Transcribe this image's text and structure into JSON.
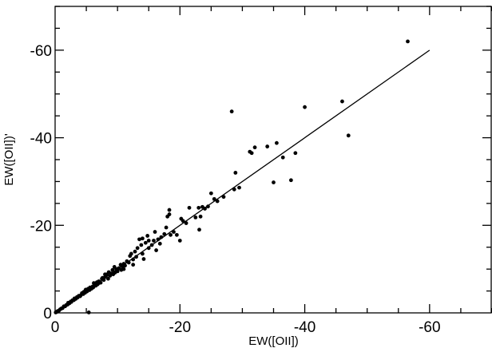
{
  "chart_data": {
    "type": "scatter",
    "title": "",
    "xlabel": "EW([OII])",
    "ylabel": "EW([OII])'",
    "xlim": [
      0,
      -70
    ],
    "ylim": [
      0,
      -70
    ],
    "xticks": [
      0,
      -20,
      -40,
      -60
    ],
    "yticks": [
      0,
      -20,
      -40,
      -60
    ],
    "tick_labels_x": [
      "0",
      "-20",
      "-40",
      "-60"
    ],
    "tick_labels_y": [
      "0",
      "-20",
      "-40",
      "-60"
    ],
    "grid": false,
    "line": {
      "name": "",
      "x": [
        0,
        -60
      ],
      "y": [
        0,
        -60
      ]
    },
    "series": [
      {
        "name": "",
        "points": [
          [
            -56.5,
            -62.0
          ],
          [
            -46.0,
            -48.3
          ],
          [
            -47.0,
            -40.5
          ],
          [
            -40.0,
            -47.0
          ],
          [
            -38.5,
            -36.5
          ],
          [
            -37.8,
            -30.3
          ],
          [
            -36.5,
            -35.5
          ],
          [
            -35.5,
            -38.8
          ],
          [
            -35.0,
            -29.8
          ],
          [
            -34.0,
            -38.0
          ],
          [
            -32.0,
            -37.8
          ],
          [
            -31.5,
            -36.5
          ],
          [
            -31.2,
            -36.8
          ],
          [
            -29.5,
            -28.6
          ],
          [
            -28.9,
            -32.0
          ],
          [
            -28.7,
            -28.2
          ],
          [
            -28.3,
            -46.0
          ],
          [
            -27.0,
            -26.5
          ],
          [
            -26.0,
            -25.5
          ],
          [
            -25.5,
            -26.0
          ],
          [
            -25.0,
            -27.3
          ],
          [
            -24.5,
            -24.3
          ],
          [
            -24.0,
            -23.8
          ],
          [
            -23.6,
            -24.2
          ],
          [
            -23.3,
            -22.0
          ],
          [
            -23.0,
            -24.0
          ],
          [
            -23.1,
            -19.0
          ],
          [
            -22.5,
            -21.8
          ],
          [
            -21.5,
            -24.0
          ],
          [
            -21.0,
            -20.5
          ],
          [
            -20.5,
            -21.0
          ],
          [
            -20.2,
            -21.5
          ],
          [
            -20.0,
            -16.5
          ],
          [
            -19.5,
            -17.8
          ],
          [
            -19.0,
            -18.5
          ],
          [
            -18.5,
            -17.8
          ],
          [
            -18.3,
            -22.5
          ],
          [
            -18.3,
            -23.5
          ],
          [
            -18.0,
            -22.0
          ],
          [
            -17.8,
            -19.5
          ],
          [
            -17.5,
            -18.0
          ],
          [
            -17.0,
            -17.3
          ],
          [
            -16.5,
            -16.8
          ],
          [
            -16.2,
            -14.3
          ],
          [
            -16.0,
            -18.5
          ],
          [
            -15.8,
            -16.5
          ],
          [
            -15.5,
            -15.5
          ],
          [
            -15.0,
            -14.8
          ],
          [
            -14.8,
            -17.6
          ],
          [
            -14.5,
            -16.0
          ],
          [
            -14.2,
            -12.3
          ],
          [
            -14.0,
            -17.0
          ],
          [
            -13.8,
            -15.5
          ],
          [
            -13.5,
            -16.8
          ],
          [
            -13.2,
            -14.8
          ],
          [
            -13.0,
            -12.8
          ],
          [
            -12.8,
            -14.0
          ],
          [
            -12.5,
            -12.2
          ],
          [
            -12.2,
            -13.5
          ],
          [
            -12.0,
            -13.0
          ],
          [
            -11.8,
            -11.5
          ],
          [
            -11.5,
            -11.8
          ],
          [
            -11.2,
            -10.8
          ],
          [
            -11.0,
            -11.2
          ],
          [
            -10.8,
            -10.5
          ],
          [
            -10.6,
            -9.8
          ],
          [
            -10.5,
            -11.0
          ],
          [
            -10.2,
            -10.2
          ],
          [
            -10.0,
            -9.5
          ],
          [
            -9.8,
            -10.0
          ],
          [
            -9.6,
            -9.2
          ],
          [
            -9.5,
            -10.5
          ],
          [
            -9.3,
            -8.8
          ],
          [
            -9.0,
            -9.0
          ],
          [
            -8.8,
            -8.5
          ],
          [
            -8.6,
            -9.3
          ],
          [
            -8.5,
            -7.8
          ],
          [
            -8.3,
            -8.8
          ],
          [
            -8.0,
            -8.2
          ],
          [
            -7.8,
            -7.5
          ],
          [
            -7.6,
            -8.0
          ],
          [
            -7.5,
            -7.8
          ],
          [
            -7.3,
            -6.9
          ],
          [
            -7.0,
            -7.2
          ],
          [
            -6.8,
            -6.5
          ],
          [
            -6.7,
            -7.0
          ],
          [
            -6.5,
            -6.2
          ],
          [
            -6.3,
            -6.6
          ],
          [
            -6.1,
            -5.8
          ],
          [
            -6.0,
            -6.0
          ],
          [
            -5.8,
            -5.5
          ],
          [
            -5.6,
            -5.8
          ],
          [
            -5.5,
            -5.2
          ],
          [
            -5.4,
            -0.1
          ],
          [
            -5.3,
            -5.5
          ],
          [
            -5.1,
            -4.9
          ],
          [
            -5.0,
            -5.1
          ],
          [
            -4.8,
            -4.6
          ],
          [
            -4.6,
            -4.8
          ],
          [
            -4.5,
            -4.3
          ],
          [
            -4.3,
            -4.5
          ],
          [
            -4.1,
            -4.0
          ],
          [
            -4.0,
            -3.8
          ],
          [
            -3.8,
            -3.9
          ],
          [
            -3.6,
            -3.5
          ],
          [
            -3.5,
            -3.6
          ],
          [
            -3.3,
            -3.2
          ],
          [
            -3.1,
            -3.3
          ],
          [
            -3.0,
            -2.9
          ],
          [
            -2.8,
            -2.9
          ],
          [
            -2.6,
            -2.5
          ],
          [
            -2.5,
            -2.6
          ],
          [
            -2.3,
            -2.2
          ],
          [
            -2.1,
            -2.3
          ],
          [
            -2.0,
            -1.9
          ],
          [
            -1.8,
            -1.8
          ],
          [
            -1.6,
            -1.5
          ],
          [
            -1.4,
            -1.5
          ],
          [
            -1.2,
            -1.1
          ],
          [
            -1.0,
            -1.0
          ],
          [
            -0.8,
            -0.8
          ],
          [
            -0.6,
            -0.5
          ],
          [
            -0.4,
            -0.4
          ],
          [
            -0.2,
            -0.2
          ],
          [
            -0.1,
            -0.1
          ],
          [
            -11.0,
            -10.0
          ],
          [
            -12.5,
            -11.0
          ],
          [
            -14.0,
            -13.5
          ],
          [
            -15.0,
            -16.5
          ],
          [
            -16.8,
            -15.8
          ],
          [
            -9.2,
            -9.8
          ],
          [
            -8.0,
            -8.8
          ],
          [
            -7.0,
            -6.8
          ],
          [
            -6.2,
            -6.8
          ],
          [
            -4.9,
            -5.3
          ]
        ]
      }
    ]
  }
}
